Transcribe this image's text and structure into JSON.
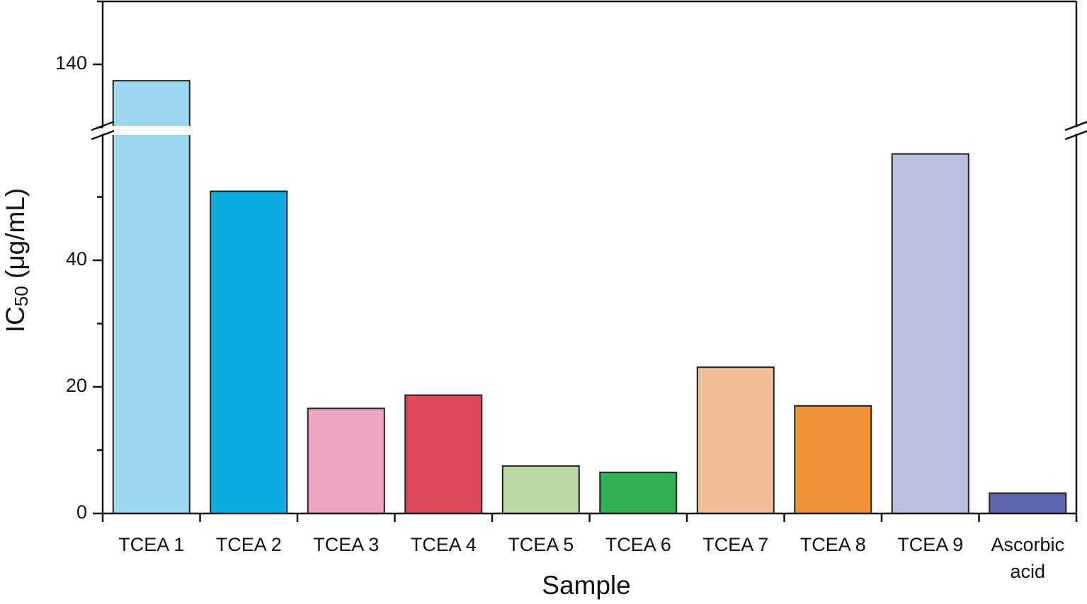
{
  "chart_data": {
    "type": "bar",
    "x_label": "Sample",
    "y_label": "IC50 (μg/mL)",
    "categories": [
      "TCEA 1",
      "TCEA 2",
      "TCEA 3",
      "TCEA 4",
      "TCEA 5",
      "TCEA 6",
      "TCEA 7",
      "TCEA 8",
      "TCEA 9",
      "Ascorbic acid"
    ],
    "values": [
      137.4,
      50.9,
      16.6,
      18.7,
      7.5,
      6.5,
      23.1,
      17.0,
      56.8,
      3.2
    ],
    "colors": [
      "#9dd8f2",
      "#0aaee3",
      "#eba5c2",
      "#db4a5b",
      "#b9daa2",
      "#33b157",
      "#edc193",
      "#f09436",
      "#bcbedd",
      "#5b68b1"
    ],
    "ylim": [
      0,
      150
    ],
    "ybreak": [
      60,
      130
    ],
    "yticks": [
      0,
      20,
      40,
      140
    ],
    "minor_yticks": [
      10,
      30,
      50,
      130,
      150
    ]
  }
}
